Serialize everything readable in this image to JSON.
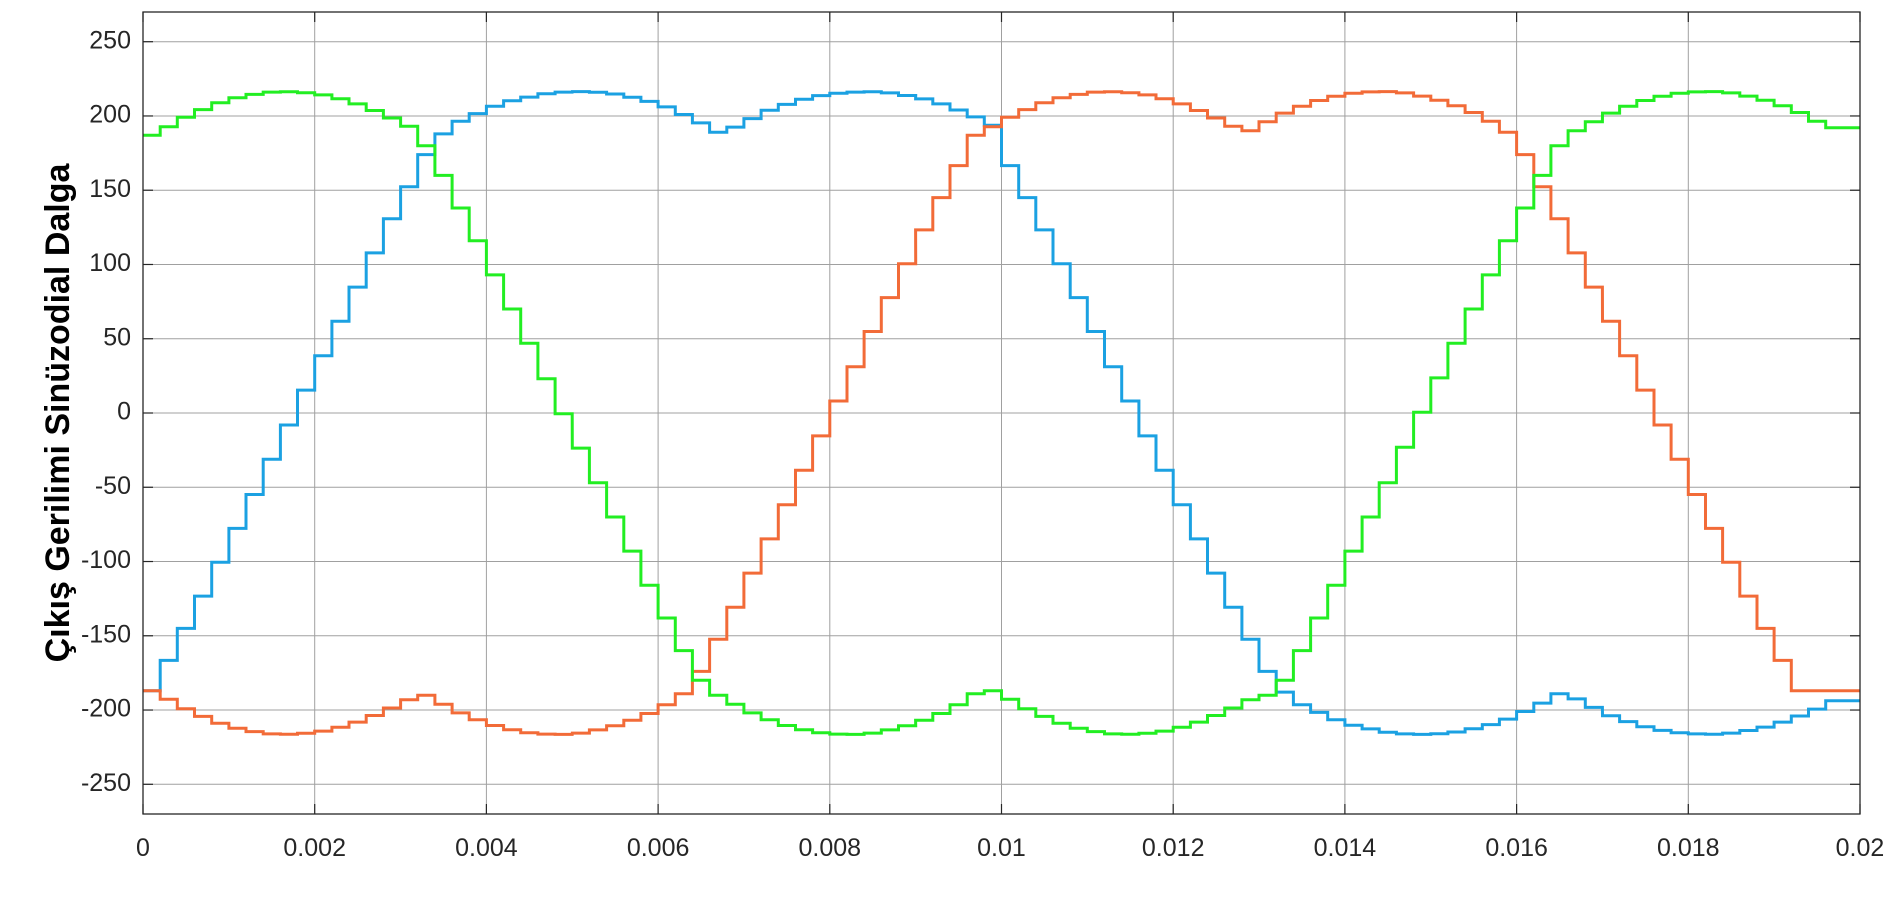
{
  "chart_data": {
    "type": "line",
    "step": true,
    "title": "",
    "xlabel": "",
    "ylabel": "Çıkış Gerilimi Sinüzodial Dalga",
    "xlim": [
      0,
      0.02
    ],
    "ylim": [
      -270,
      270
    ],
    "grid": true,
    "x_ticks": [
      0,
      0.002,
      0.004,
      0.006,
      0.008,
      0.01,
      0.012,
      0.014,
      0.016,
      0.018,
      0.02
    ],
    "x_tick_labels": [
      "0",
      "0.002",
      "0.004",
      "0.006",
      "0.008",
      "0.01",
      "0.012",
      "0.014",
      "0.016",
      "0.018",
      "0.02"
    ],
    "y_ticks": [
      250,
      200,
      150,
      100,
      50,
      0,
      -50,
      -100,
      -150,
      -200,
      -250
    ],
    "y_tick_labels": [
      "250",
      "200",
      "150",
      "100",
      "50",
      "0",
      "-50",
      "-100",
      "-150",
      "-200",
      "-250"
    ],
    "step_width": 0.0002,
    "x": [
      0,
      0.0002,
      0.0004,
      0.0006,
      0.0008,
      0.001,
      0.0012,
      0.0014,
      0.0016,
      0.0018,
      0.002,
      0.0022,
      0.0024,
      0.0026,
      0.0028,
      0.003,
      0.0032,
      0.0034,
      0.0036,
      0.0038,
      0.004,
      0.0042,
      0.0044,
      0.0046,
      0.0048,
      0.005,
      0.0052,
      0.0054,
      0.0056,
      0.0058,
      0.006,
      0.0062,
      0.0064,
      0.0066,
      0.0068,
      0.007,
      0.0072,
      0.0074,
      0.0076,
      0.0078,
      0.008,
      0.0082,
      0.0084,
      0.0086,
      0.0088,
      0.009,
      0.0092,
      0.0094,
      0.0096,
      0.0098,
      0.01,
      0.0102,
      0.0104,
      0.0106,
      0.0108,
      0.011,
      0.0112,
      0.0114,
      0.0116,
      0.0118,
      0.012,
      0.0122,
      0.0124,
      0.0126,
      0.0128,
      0.013,
      0.0132,
      0.0134,
      0.0136,
      0.0138,
      0.014,
      0.0142,
      0.0144,
      0.0146,
      0.0148,
      0.015,
      0.0152,
      0.0154,
      0.0156,
      0.0158,
      0.016,
      0.0162,
      0.0164,
      0.0166,
      0.0168,
      0.017,
      0.0172,
      0.0174,
      0.0176,
      0.0178,
      0.018,
      0.0182,
      0.0184,
      0.0186,
      0.0188,
      0.019,
      0.0192,
      0.0194,
      0.0196,
      0.0198
    ],
    "series": [
      {
        "color": "#1ba1e2",
        "values": [
          -187.0,
          -166.6,
          -145.0,
          -123.3,
          -100.5,
          -77.7,
          -54.9,
          -31.2,
          -8.1,
          15.4,
          38.5,
          61.8,
          84.8,
          107.8,
          130.8,
          152.4,
          174.0,
          187.9,
          196.5,
          201.6,
          206.6,
          210.2,
          212.7,
          214.9,
          216.1,
          216.4,
          216.0,
          214.8,
          212.6,
          209.8,
          206.1,
          201.0,
          195.3,
          189.0,
          192.5,
          198.2,
          203.8,
          207.8,
          211.2,
          213.7,
          215.3,
          216.1,
          216.3,
          215.5,
          213.8,
          211.5,
          208.1,
          204.0,
          199.4,
          193.7,
          166.6,
          145.0,
          123.3,
          100.5,
          77.7,
          54.9,
          31.2,
          8.1,
          -15.4,
          -38.5,
          -61.8,
          -84.8,
          -107.8,
          -130.8,
          -152.4,
          -174.0,
          -187.9,
          -196.5,
          -201.6,
          -206.6,
          -210.2,
          -212.7,
          -214.9,
          -216.1,
          -216.4,
          -216.0,
          -214.8,
          -212.6,
          -209.8,
          -206.1,
          -201.0,
          -195.3,
          -189.0,
          -192.5,
          -198.2,
          -203.8,
          -207.8,
          -211.2,
          -213.7,
          -215.3,
          -216.1,
          -216.3,
          -215.5,
          -213.8,
          -211.5,
          -208.1,
          -204.0,
          -199.4,
          -193.7,
          -193.7
        ]
      },
      {
        "color": "#f26b38",
        "values": [
          -187.0,
          -192.8,
          -199.1,
          -204.3,
          -208.9,
          -212.3,
          -214.5,
          -216.1,
          -216.3,
          -215.6,
          -214.2,
          -211.6,
          -208.1,
          -203.7,
          -198.6,
          -193.1,
          -190.0,
          -196.1,
          -201.9,
          -206.5,
          -210.4,
          -213.3,
          -215.3,
          -216.2,
          -216.4,
          -215.5,
          -213.4,
          -210.6,
          -206.9,
          -202.3,
          -196.4,
          -189.0,
          -174.0,
          -152.4,
          -130.8,
          -107.8,
          -84.8,
          -61.8,
          -38.5,
          -15.4,
          8.1,
          31.2,
          54.9,
          77.7,
          100.5,
          123.3,
          145.0,
          166.6,
          187.0,
          192.8,
          199.1,
          204.3,
          208.9,
          212.3,
          214.5,
          216.1,
          216.3,
          215.6,
          214.2,
          211.6,
          208.1,
          203.7,
          198.6,
          193.1,
          190.0,
          196.1,
          201.9,
          206.5,
          210.4,
          213.3,
          215.3,
          216.2,
          216.4,
          215.5,
          213.4,
          210.6,
          206.9,
          202.3,
          196.4,
          189.0,
          174.0,
          152.4,
          130.8,
          107.8,
          84.8,
          61.8,
          38.5,
          15.4,
          -8.1,
          -31.2,
          -54.9,
          -77.7,
          -100.5,
          -123.3,
          -145.0,
          -166.6,
          -187.0,
          -187.0,
          -187.0,
          -187.0
        ]
      },
      {
        "color": "#22ee22",
        "values": [
          187.0,
          192.8,
          199.1,
          204.3,
          208.9,
          212.3,
          214.5,
          216.1,
          216.3,
          215.6,
          214.2,
          211.6,
          208.1,
          203.7,
          198.6,
          193.1,
          180.0,
          160.0,
          138.0,
          116.0,
          93.0,
          70.0,
          47.0,
          23.0,
          -0.5,
          -23.6,
          -47.0,
          -70.0,
          -93.0,
          -116.0,
          -138.0,
          -160.0,
          -180.0,
          -190.0,
          -196.1,
          -201.9,
          -206.5,
          -210.4,
          -213.3,
          -215.3,
          -216.2,
          -216.4,
          -215.5,
          -213.4,
          -210.6,
          -206.9,
          -202.3,
          -196.4,
          -189.0,
          -187.0,
          -192.8,
          -199.1,
          -204.3,
          -208.9,
          -212.3,
          -214.5,
          -216.1,
          -216.3,
          -215.6,
          -214.2,
          -211.6,
          -208.1,
          -203.7,
          -198.6,
          -193.1,
          -190.0,
          -180.0,
          -160.0,
          -138.0,
          -116.0,
          -93.0,
          -70.0,
          -47.0,
          -23.0,
          0.5,
          23.6,
          47.0,
          70.0,
          93.0,
          116.0,
          138.0,
          160.0,
          180.0,
          190.0,
          196.1,
          201.9,
          206.5,
          210.4,
          213.3,
          215.3,
          216.2,
          216.4,
          215.5,
          213.4,
          210.6,
          206.9,
          202.3,
          196.4,
          192.0,
          192.0
        ]
      }
    ]
  }
}
